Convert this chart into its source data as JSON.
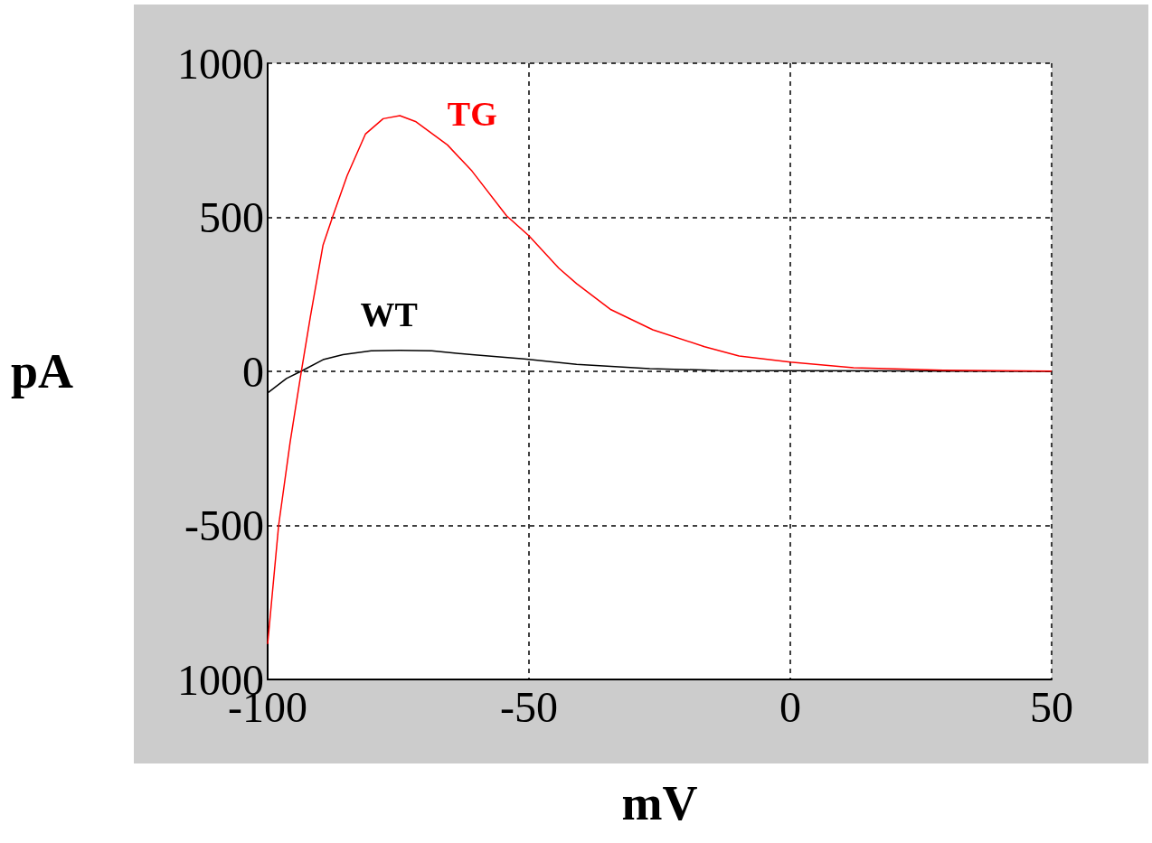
{
  "chart_data": {
    "type": "line",
    "xlabel": "mV",
    "ylabel": "pA",
    "xlim": [
      -100,
      50
    ],
    "xticks": [
      -100,
      -50,
      0,
      50
    ],
    "ylim": [
      -1000,
      1000
    ],
    "yticks": [
      {
        "value": -1000,
        "label": "1000"
      },
      -500,
      0,
      500,
      1000
    ],
    "grid": true,
    "line_style": "solid",
    "marker": "none",
    "series": [
      {
        "name": "TG",
        "color": "#ff0000",
        "x": [
          -100,
          -97.9,
          -95.7,
          -93.6,
          -91.8,
          -89.4,
          -87.5,
          -84.8,
          -81.3,
          -77.9,
          -74.7,
          -71.6,
          -65.6,
          -60.9,
          -54.3,
          -50,
          -44.3,
          -40.9,
          -34.3,
          -26.3,
          -16.4,
          -9.8,
          0,
          12.1,
          29.3,
          50
        ],
        "values": [
          -885,
          -500,
          -230,
          -5,
          180,
          410,
          505,
          635,
          770,
          820,
          830,
          810,
          735,
          650,
          505,
          440,
          335,
          285,
          200,
          135,
          80,
          50,
          30,
          12,
          4,
          1
        ]
      },
      {
        "name": "WT",
        "color": "#000000",
        "x": [
          -100,
          -96.4,
          -93.3,
          -89.4,
          -85.6,
          -80.2,
          -74.7,
          -68.6,
          -60.9,
          -50.9,
          -40.9,
          -26.9,
          -13.8,
          0,
          28.7,
          50
        ],
        "values": [
          -70,
          -23,
          3,
          38,
          54,
          67,
          68,
          67,
          54,
          40,
          23,
          9,
          3,
          2,
          1,
          0
        ]
      }
    ]
  }
}
